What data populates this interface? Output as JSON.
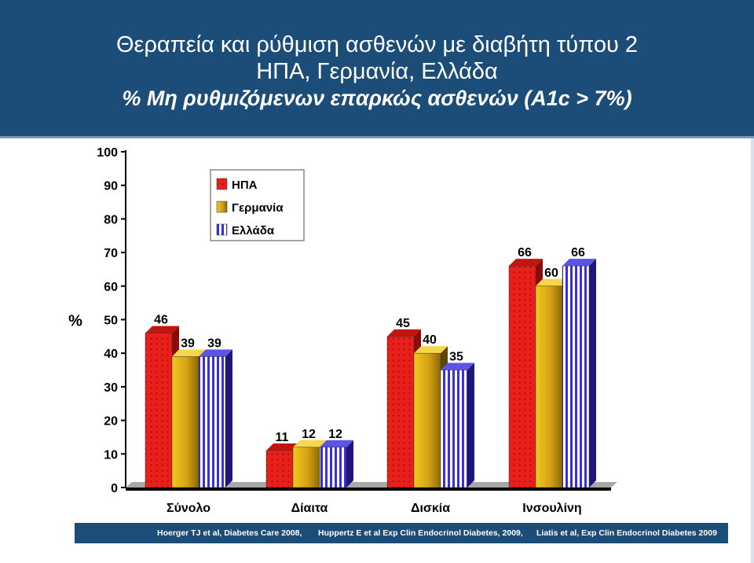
{
  "header": {
    "title_line1": "Θεραπεία και ρύθμιση ασθενών με διαβήτη τύπου 2",
    "title_line2": "ΗΠΑ, Γερμανία, Ελλάδα",
    "title_line3": "% Μη ρυθμιζόμενων επαρκώς ασθενών (A1c > 7%)"
  },
  "colors": {
    "header_bg": "#1c4c78",
    "usa": "#e8201c",
    "germany": "#d4a214",
    "greece": "#3b2fd6"
  },
  "chart_data": {
    "type": "bar",
    "ylabel": "%",
    "ylim": [
      0,
      100
    ],
    "yticks": [
      0,
      10,
      20,
      30,
      40,
      50,
      60,
      70,
      80,
      90,
      100
    ],
    "categories": [
      "Σύνολο",
      "Δίαιτα",
      "Δισκία",
      "Ινσουλίνη"
    ],
    "series": [
      {
        "name": "ΗΠΑ",
        "values": [
          46,
          11,
          45,
          66
        ]
      },
      {
        "name": "Γερμανία",
        "values": [
          39,
          12,
          40,
          60
        ]
      },
      {
        "name": "Ελλάδα",
        "values": [
          39,
          12,
          35,
          66
        ]
      }
    ],
    "legend_position": "top-left"
  },
  "footer": {
    "ref1": "Hoerger TJ et al, Diabetes Care 2008,",
    "ref2": "Huppertz E et al Exp Clin Endocrinol Diabetes, 2009,",
    "ref3": "Liatis et al, Exp Clin Endocrinol Diabetes 2009"
  }
}
